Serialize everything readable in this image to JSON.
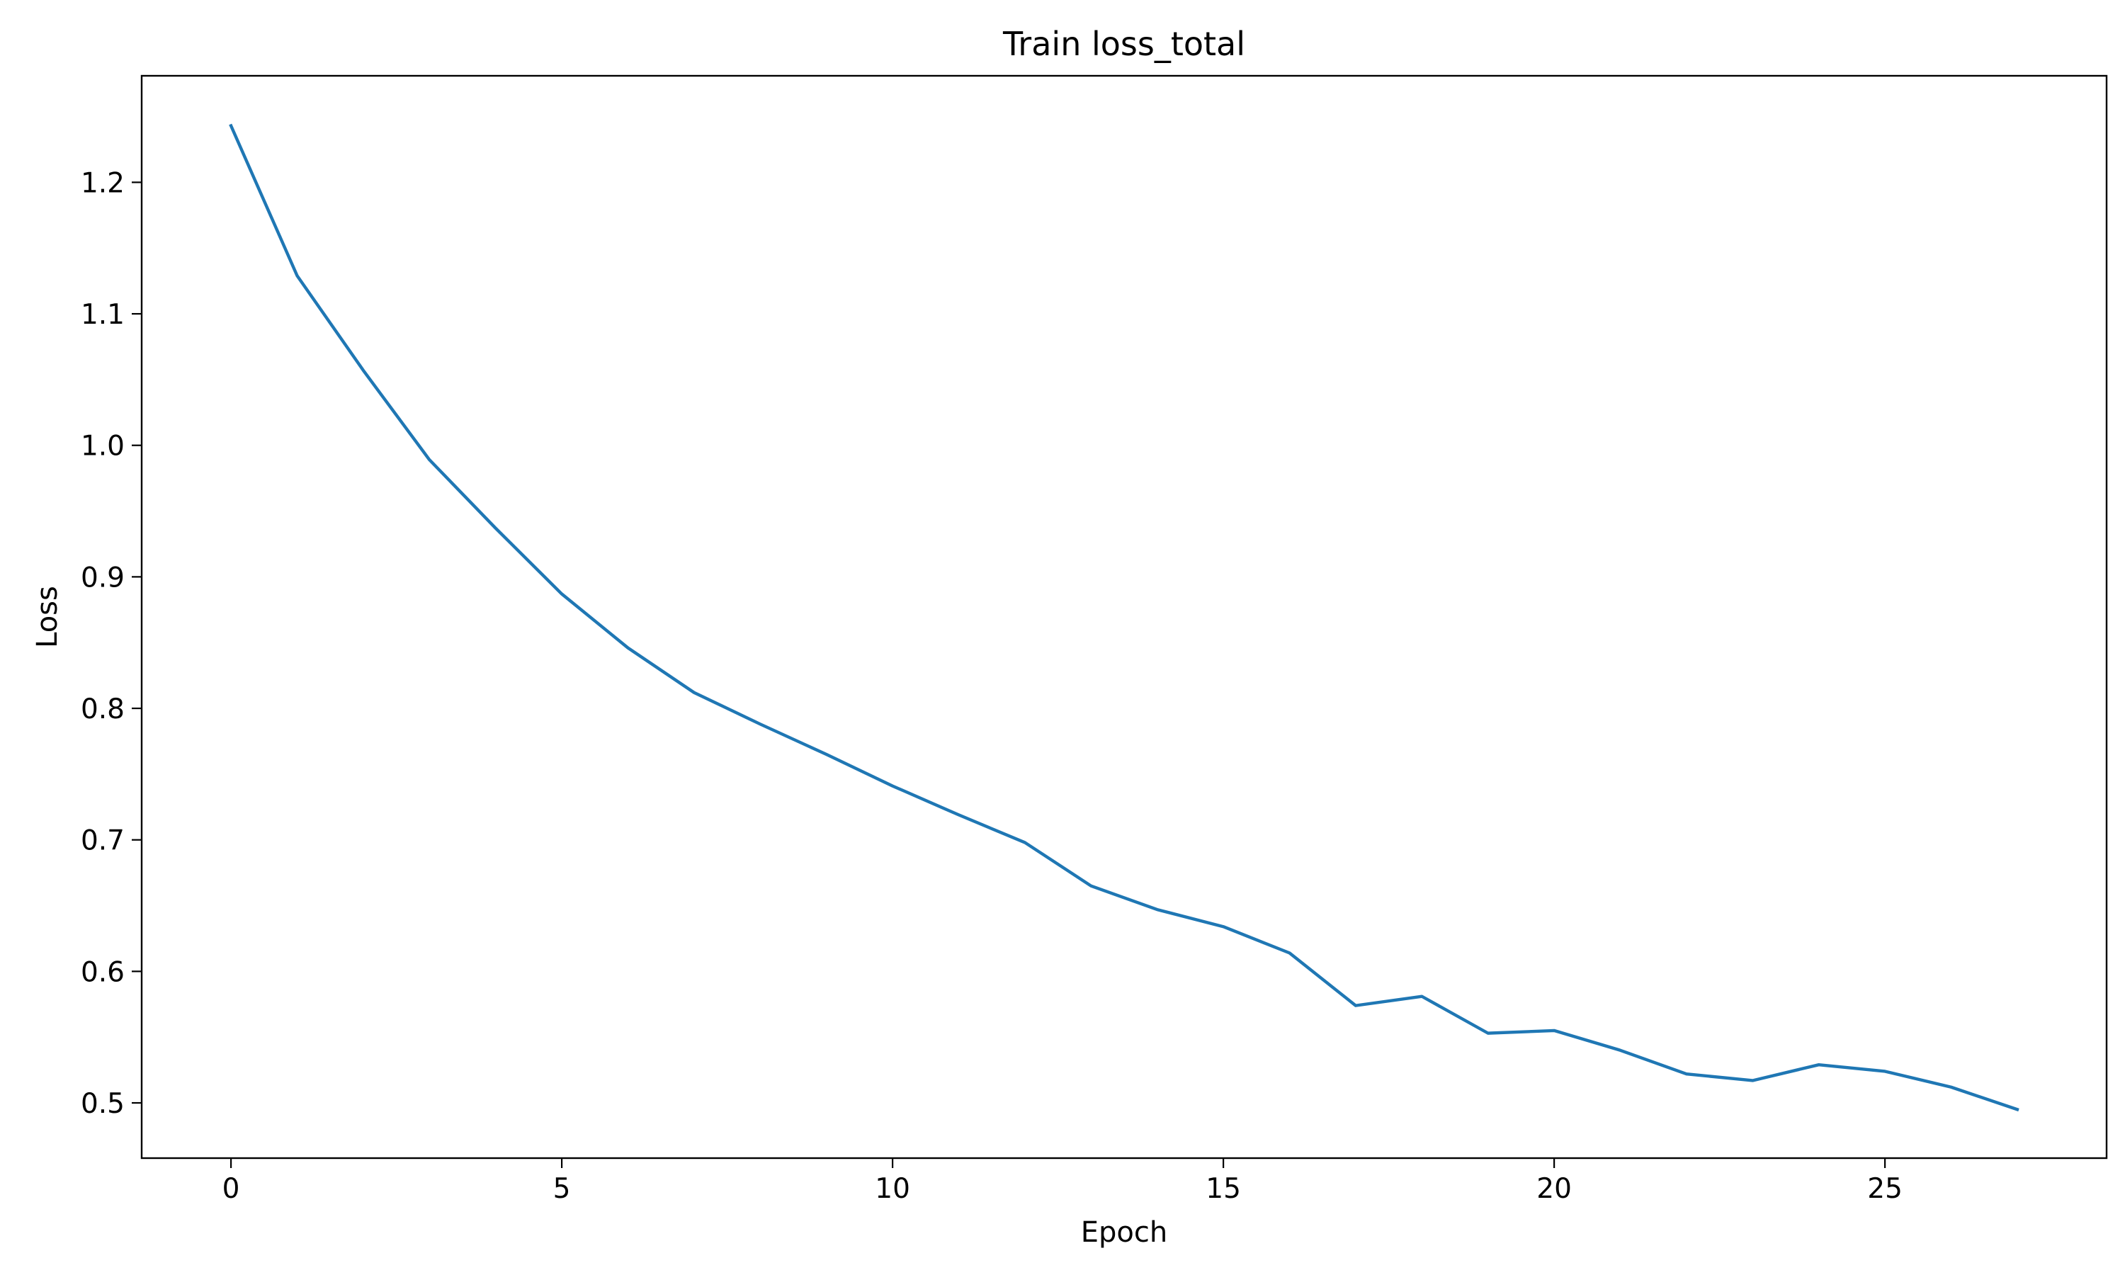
{
  "chart_data": {
    "type": "line",
    "title": "Train loss_total",
    "xlabel": "Epoch",
    "ylabel": "Loss",
    "xlim": [
      -1.35,
      28.35
    ],
    "ylim": [
      0.458,
      1.281
    ],
    "grid": false,
    "x_ticks": [
      0,
      5,
      10,
      15,
      20,
      25
    ],
    "y_ticks": [
      0.5,
      0.6,
      0.7,
      0.8,
      0.9,
      1.0,
      1.1,
      1.2
    ],
    "series": [
      {
        "color": "#1f77b4",
        "x": [
          0,
          1,
          2,
          3,
          4,
          5,
          6,
          7,
          8,
          9,
          10,
          11,
          12,
          13,
          14,
          15,
          16,
          17,
          18,
          19,
          20,
          21,
          22,
          23,
          24,
          25,
          26,
          27
        ],
        "y": [
          1.243,
          1.129,
          1.057,
          0.989,
          0.937,
          0.887,
          0.846,
          0.812,
          0.788,
          0.765,
          0.741,
          0.719,
          0.698,
          0.665,
          0.647,
          0.634,
          0.614,
          0.574,
          0.581,
          0.553,
          0.555,
          0.54,
          0.522,
          0.517,
          0.529,
          0.524,
          0.512,
          0.495
        ]
      }
    ]
  }
}
